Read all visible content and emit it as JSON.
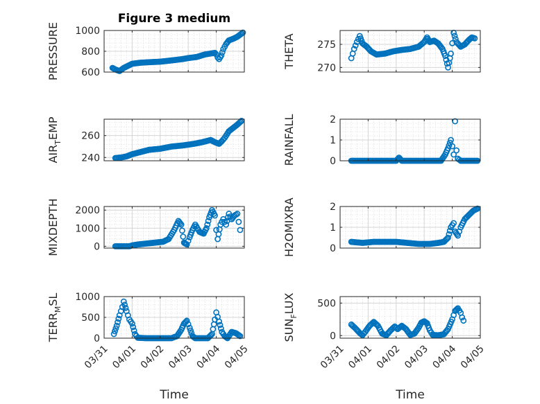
{
  "figure": {
    "title": "Figure 3 medium"
  },
  "colors": {
    "marker": "#0072BD",
    "axis": "#262626"
  },
  "chart_data": [
    {
      "id": "pressure",
      "type": "scatter",
      "ylabel": "PRESSURE",
      "ylabel_sub": "",
      "ylabel_tail": "",
      "xlim": [
        0,
        5
      ],
      "ylim": [
        600,
        1000
      ],
      "yticks": [
        600,
        800,
        1000
      ],
      "yticklabels": [
        "600",
        "800",
        "1000"
      ],
      "xticks": [
        0,
        1,
        2,
        3,
        4,
        5
      ],
      "xticklabels": [
        "03/31",
        "04/01",
        "04/02",
        "04/03",
        "04/04",
        "04/05"
      ],
      "show_xticklabels": false,
      "xlabel": "",
      "title": "Figure 3 medium",
      "anchors": [
        [
          0.3,
          640
        ],
        [
          0.4,
          625
        ],
        [
          0.55,
          610
        ],
        [
          0.7,
          640
        ],
        [
          0.85,
          660
        ],
        [
          1.0,
          680
        ],
        [
          1.3,
          690
        ],
        [
          1.6,
          695
        ],
        [
          2.0,
          700
        ],
        [
          2.4,
          712
        ],
        [
          2.8,
          725
        ],
        [
          3.0,
          735
        ],
        [
          3.3,
          745
        ],
        [
          3.6,
          770
        ],
        [
          3.95,
          785
        ],
        [
          4.0,
          770
        ],
        [
          4.05,
          740
        ],
        [
          4.1,
          725
        ],
        [
          4.18,
          760
        ],
        [
          4.25,
          820
        ],
        [
          4.35,
          870
        ],
        [
          4.45,
          905
        ],
        [
          4.6,
          920
        ],
        [
          4.75,
          940
        ],
        [
          4.9,
          970
        ],
        [
          4.95,
          980
        ]
      ]
    },
    {
      "id": "theta",
      "type": "scatter",
      "ylabel": "THETA",
      "ylabel_sub": "",
      "ylabel_tail": "",
      "xlim": [
        0,
        5
      ],
      "ylim": [
        269,
        278
      ],
      "yticks": [
        270,
        275
      ],
      "yticklabels": [
        "270",
        "275"
      ],
      "xticks": [
        0,
        1,
        2,
        3,
        4,
        5
      ],
      "xticklabels": [
        "03/31",
        "04/01",
        "04/02",
        "04/03",
        "04/04",
        "04/05"
      ],
      "show_xticklabels": false,
      "xlabel": "",
      "anchors": [
        [
          0.4,
          272
        ],
        [
          0.5,
          274
        ],
        [
          0.6,
          275.5
        ],
        [
          0.7,
          276.8
        ],
        [
          0.8,
          275.2
        ],
        [
          0.95,
          274.5
        ],
        [
          1.1,
          273.5
        ],
        [
          1.3,
          272.8
        ],
        [
          1.6,
          273.0
        ],
        [
          1.9,
          273.5
        ],
        [
          2.2,
          273.8
        ],
        [
          2.5,
          274.0
        ],
        [
          2.8,
          274.5
        ],
        [
          3.0,
          275.5
        ],
        [
          3.1,
          276.5
        ],
        [
          3.2,
          275.5
        ],
        [
          3.35,
          275.8
        ],
        [
          3.5,
          275.2
        ],
        [
          3.65,
          274.0
        ],
        [
          3.75,
          272.5
        ],
        [
          3.85,
          270.0
        ],
        [
          3.95,
          273.0
        ],
        [
          4.05,
          277.5
        ],
        [
          4.15,
          275.5
        ],
        [
          4.3,
          274.5
        ],
        [
          4.45,
          275.0
        ],
        [
          4.6,
          276.0
        ],
        [
          4.7,
          276.5
        ],
        [
          4.8,
          276.3
        ]
      ]
    },
    {
      "id": "air_temp",
      "type": "scatter",
      "ylabel": "AIR",
      "ylabel_sub": "T",
      "ylabel_tail": "EMP",
      "xlim": [
        0,
        5
      ],
      "ylim": [
        237,
        275
      ],
      "yticks": [
        240,
        260
      ],
      "yticklabels": [
        "240",
        "260"
      ],
      "xticks": [
        0,
        1,
        2,
        3,
        4,
        5
      ],
      "xticklabels": [
        "03/31",
        "04/01",
        "04/02",
        "04/03",
        "04/04",
        "04/05"
      ],
      "show_xticklabels": false,
      "xlabel": "",
      "anchors": [
        [
          0.4,
          239.5
        ],
        [
          0.6,
          240
        ],
        [
          0.8,
          241
        ],
        [
          1.0,
          243
        ],
        [
          1.3,
          245
        ],
        [
          1.6,
          247
        ],
        [
          2.0,
          248
        ],
        [
          2.4,
          250
        ],
        [
          2.8,
          251
        ],
        [
          3.2,
          252.5
        ],
        [
          3.5,
          254
        ],
        [
          3.8,
          256
        ],
        [
          3.95,
          254
        ],
        [
          4.1,
          252.5
        ],
        [
          4.2,
          255
        ],
        [
          4.3,
          258
        ],
        [
          4.45,
          264
        ],
        [
          4.6,
          267
        ],
        [
          4.75,
          270
        ],
        [
          4.9,
          273.5
        ]
      ]
    },
    {
      "id": "rainfall",
      "type": "scatter",
      "ylabel": "RAINFALL",
      "ylabel_sub": "",
      "ylabel_tail": "",
      "xlim": [
        0,
        5
      ],
      "ylim": [
        0,
        2
      ],
      "yticks": [
        0,
        1,
        2
      ],
      "yticklabels": [
        "0",
        "1",
        "2"
      ],
      "xticks": [
        0,
        1,
        2,
        3,
        4,
        5
      ],
      "xticklabels": [
        "03/31",
        "04/01",
        "04/02",
        "04/03",
        "04/04",
        "04/05"
      ],
      "show_xticklabels": false,
      "xlabel": "",
      "anchors": [
        [
          0.4,
          0
        ],
        [
          2.0,
          0
        ],
        [
          2.1,
          0.15
        ],
        [
          2.2,
          0
        ],
        [
          3.6,
          0
        ],
        [
          3.75,
          0.3
        ],
        [
          3.85,
          0.6
        ],
        [
          3.95,
          1.0
        ],
        [
          4.0,
          0.7
        ],
        [
          4.05,
          0.3
        ],
        [
          4.1,
          1.9
        ],
        [
          4.15,
          0.5
        ],
        [
          4.2,
          0.1
        ],
        [
          4.3,
          0
        ],
        [
          4.9,
          0
        ]
      ]
    },
    {
      "id": "mixdepth",
      "type": "scatter",
      "ylabel": "MIXDEPTH",
      "ylabel_sub": "",
      "ylabel_tail": "",
      "xlim": [
        0,
        5
      ],
      "ylim": [
        -100,
        2200
      ],
      "yticks": [
        0,
        1000,
        2000
      ],
      "yticklabels": [
        "0",
        "1000",
        "2000"
      ],
      "xticks": [
        0,
        1,
        2,
        3,
        4,
        5
      ],
      "xticklabels": [
        "03/31",
        "04/01",
        "04/02",
        "04/03",
        "04/04",
        "04/05"
      ],
      "show_xticklabels": false,
      "xlabel": "",
      "anchors": [
        [
          0.4,
          0
        ],
        [
          0.9,
          0
        ],
        [
          1.0,
          50
        ],
        [
          1.2,
          100
        ],
        [
          1.5,
          150
        ],
        [
          1.8,
          200
        ],
        [
          2.1,
          250
        ],
        [
          2.3,
          400
        ],
        [
          2.5,
          900
        ],
        [
          2.65,
          1400
        ],
        [
          2.75,
          1200
        ],
        [
          2.85,
          200
        ],
        [
          2.95,
          100
        ],
        [
          3.05,
          500
        ],
        [
          3.15,
          900
        ],
        [
          3.25,
          1200
        ],
        [
          3.4,
          800
        ],
        [
          3.55,
          700
        ],
        [
          3.65,
          1000
        ],
        [
          3.75,
          1600
        ],
        [
          3.85,
          2000
        ],
        [
          3.95,
          1700
        ],
        [
          4.0,
          900
        ],
        [
          4.05,
          400
        ],
        [
          4.15,
          1200
        ],
        [
          4.25,
          1500
        ],
        [
          4.35,
          1200
        ],
        [
          4.45,
          1800
        ],
        [
          4.55,
          1500
        ],
        [
          4.65,
          1700
        ],
        [
          4.75,
          1800
        ],
        [
          4.85,
          900
        ]
      ]
    },
    {
      "id": "h2omixra",
      "type": "scatter",
      "ylabel": "H2OMIXRA",
      "ylabel_sub": "",
      "ylabel_tail": "",
      "xlim": [
        0,
        5
      ],
      "ylim": [
        0,
        2
      ],
      "yticks": [
        0,
        1,
        2
      ],
      "yticklabels": [
        "0",
        "1",
        "2"
      ],
      "xticks": [
        0,
        1,
        2,
        3,
        4,
        5
      ],
      "xticklabels": [
        "03/31",
        "04/01",
        "04/02",
        "04/03",
        "04/04",
        "04/05"
      ],
      "show_xticklabels": false,
      "xlabel": "",
      "anchors": [
        [
          0.4,
          0.3
        ],
        [
          0.8,
          0.25
        ],
        [
          1.2,
          0.3
        ],
        [
          1.6,
          0.3
        ],
        [
          2.0,
          0.3
        ],
        [
          2.4,
          0.25
        ],
        [
          2.8,
          0.2
        ],
        [
          3.2,
          0.2
        ],
        [
          3.5,
          0.25
        ],
        [
          3.7,
          0.3
        ],
        [
          3.85,
          0.5
        ],
        [
          3.95,
          1.0
        ],
        [
          4.05,
          1.2
        ],
        [
          4.1,
          0.8
        ],
        [
          4.2,
          0.6
        ],
        [
          4.3,
          1.0
        ],
        [
          4.45,
          1.4
        ],
        [
          4.6,
          1.6
        ],
        [
          4.75,
          1.8
        ],
        [
          4.9,
          1.9
        ]
      ]
    },
    {
      "id": "terr_msl",
      "type": "scatter",
      "ylabel": "TERR",
      "ylabel_sub": "M",
      "ylabel_tail": "SL",
      "xlim": [
        0,
        5
      ],
      "ylim": [
        0,
        1000
      ],
      "yticks": [
        0,
        500,
        1000
      ],
      "yticklabels": [
        "0",
        "500",
        "1000"
      ],
      "xticks": [
        0,
        1,
        2,
        3,
        4,
        5
      ],
      "xticklabels": [
        "03/31",
        "04/01",
        "04/02",
        "04/03",
        "04/04",
        "04/05"
      ],
      "show_xticklabels": true,
      "xlabel": "Time",
      "anchors": [
        [
          0.35,
          100
        ],
        [
          0.45,
          300
        ],
        [
          0.55,
          550
        ],
        [
          0.65,
          750
        ],
        [
          0.7,
          880
        ],
        [
          0.8,
          650
        ],
        [
          0.9,
          450
        ],
        [
          1.0,
          350
        ],
        [
          1.1,
          100
        ],
        [
          1.2,
          10
        ],
        [
          1.5,
          0
        ],
        [
          2.0,
          0
        ],
        [
          2.4,
          0
        ],
        [
          2.6,
          50
        ],
        [
          2.75,
          200
        ],
        [
          2.85,
          350
        ],
        [
          2.95,
          420
        ],
        [
          3.05,
          250
        ],
        [
          3.15,
          50
        ],
        [
          3.25,
          0
        ],
        [
          3.7,
          0
        ],
        [
          3.85,
          100
        ],
        [
          3.95,
          450
        ],
        [
          4.0,
          620
        ],
        [
          4.1,
          400
        ],
        [
          4.2,
          150
        ],
        [
          4.3,
          50
        ],
        [
          4.4,
          0
        ],
        [
          4.55,
          150
        ],
        [
          4.7,
          120
        ],
        [
          4.85,
          50
        ]
      ]
    },
    {
      "id": "sun_flux",
      "type": "scatter",
      "ylabel": "SUN",
      "ylabel_sub": "F",
      "ylabel_tail": "LUX",
      "xlim": [
        0,
        5
      ],
      "ylim": [
        -40,
        600
      ],
      "yticks": [
        0,
        500
      ],
      "yticklabels": [
        "0",
        "500"
      ],
      "xticks": [
        0,
        1,
        2,
        3,
        4,
        5
      ],
      "xticklabels": [
        "03/31",
        "04/01",
        "04/02",
        "04/03",
        "04/04",
        "04/05"
      ],
      "show_xticklabels": true,
      "xlabel": "Time",
      "anchors": [
        [
          0.4,
          170
        ],
        [
          0.55,
          110
        ],
        [
          0.7,
          40
        ],
        [
          0.8,
          5
        ],
        [
          0.9,
          60
        ],
        [
          1.05,
          150
        ],
        [
          1.2,
          210
        ],
        [
          1.35,
          150
        ],
        [
          1.5,
          30
        ],
        [
          1.65,
          5
        ],
        [
          1.8,
          80
        ],
        [
          1.95,
          140
        ],
        [
          2.05,
          100
        ],
        [
          2.2,
          150
        ],
        [
          2.35,
          100
        ],
        [
          2.5,
          10
        ],
        [
          2.65,
          30
        ],
        [
          2.8,
          120
        ],
        [
          2.9,
          200
        ],
        [
          3.0,
          220
        ],
        [
          3.1,
          190
        ],
        [
          3.2,
          80
        ],
        [
          3.3,
          10
        ],
        [
          3.5,
          5
        ],
        [
          3.7,
          20
        ],
        [
          3.85,
          100
        ],
        [
          4.0,
          250
        ],
        [
          4.1,
          380
        ],
        [
          4.2,
          420
        ],
        [
          4.3,
          350
        ],
        [
          4.35,
          280
        ],
        [
          4.4,
          230
        ]
      ]
    }
  ]
}
